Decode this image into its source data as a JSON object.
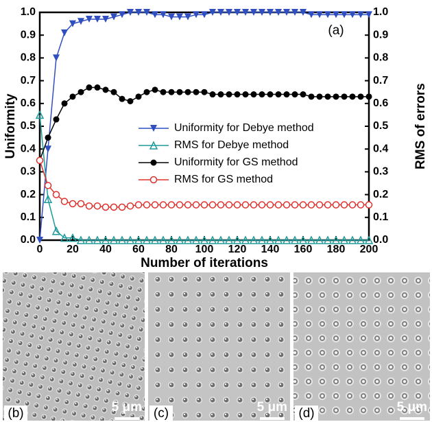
{
  "chart_data": {
    "type": "line",
    "annotation": "(a)",
    "x_label": "Number of iterations",
    "y_label": "Uniformity",
    "y2_label": "RMS of errors",
    "x": [
      0,
      5,
      10,
      15,
      20,
      25,
      30,
      35,
      40,
      45,
      50,
      55,
      60,
      65,
      70,
      75,
      80,
      85,
      90,
      95,
      100,
      105,
      110,
      115,
      120,
      125,
      130,
      135,
      140,
      145,
      150,
      155,
      160,
      165,
      170,
      175,
      180,
      185,
      190,
      195,
      200
    ],
    "xlim": [
      0,
      200
    ],
    "xticks": [
      0,
      20,
      40,
      60,
      80,
      100,
      120,
      140,
      160,
      180,
      200
    ],
    "ylim": [
      0,
      1
    ],
    "yticks": [
      {
        "value": 0,
        "label": "0.0"
      },
      0.1,
      0.2,
      0.3,
      0.4,
      0.5,
      0.6,
      0.7,
      0.8,
      0.9,
      {
        "value": 1,
        "label": "1.0"
      }
    ],
    "y2lim": [
      0,
      1
    ],
    "y2ticks": [
      {
        "value": 0,
        "label": "0.0"
      },
      0.1,
      0.2,
      0.3,
      0.4,
      0.5,
      0.6,
      0.7,
      0.8,
      0.9,
      {
        "value": 1,
        "label": "1.0"
      }
    ],
    "grid": false,
    "series": [
      {
        "name": "Uniformity for Debye method",
        "color": "#2f4fc0",
        "marker": "triangle-down",
        "values": [
          0.0,
          0.4,
          0.8,
          0.91,
          0.95,
          0.96,
          0.97,
          0.97,
          0.97,
          0.98,
          0.99,
          1.0,
          1.0,
          1.0,
          0.99,
          0.99,
          0.98,
          0.98,
          0.98,
          0.99,
          0.99,
          1.0,
          1.0,
          1.0,
          1.0,
          1.0,
          1.0,
          1.0,
          1.0,
          1.0,
          1.0,
          1.0,
          1.0,
          0.99,
          0.99,
          0.99,
          0.99,
          0.99,
          0.99,
          0.99,
          0.99
        ]
      },
      {
        "name": "RMS for Debye method",
        "color": "#1f9a9a",
        "marker": "triangle-up",
        "axis": "y2",
        "values": [
          0.55,
          0.18,
          0.04,
          0.01,
          0.01,
          0.0,
          0.0,
          0.0,
          0.0,
          0.0,
          0.0,
          0.0,
          0.0,
          0.0,
          0.0,
          0.0,
          0.0,
          0.0,
          0.0,
          0.0,
          0.0,
          0.0,
          0.0,
          0.0,
          0.0,
          0.0,
          0.0,
          0.0,
          0.0,
          0.0,
          0.0,
          0.0,
          0.0,
          0.0,
          0.0,
          0.0,
          0.0,
          0.0,
          0.0,
          0.0,
          0.0
        ]
      },
      {
        "name": "Uniformity for GS method",
        "color": "#000000",
        "marker": "circle",
        "values": [
          0.35,
          0.45,
          0.53,
          0.6,
          0.63,
          0.65,
          0.67,
          0.67,
          0.66,
          0.65,
          0.62,
          0.61,
          0.63,
          0.65,
          0.66,
          0.65,
          0.65,
          0.65,
          0.65,
          0.65,
          0.65,
          0.64,
          0.64,
          0.64,
          0.64,
          0.64,
          0.64,
          0.64,
          0.64,
          0.64,
          0.64,
          0.64,
          0.64,
          0.63,
          0.63,
          0.63,
          0.63,
          0.63,
          0.63,
          0.63,
          0.63
        ]
      },
      {
        "name": "RMS for GS method",
        "color": "#e0302a",
        "marker": "open-circle",
        "axis": "y2",
        "values": [
          0.35,
          0.24,
          0.2,
          0.17,
          0.16,
          0.16,
          0.15,
          0.15,
          0.145,
          0.145,
          0.145,
          0.15,
          0.155,
          0.155,
          0.155,
          0.155,
          0.155,
          0.155,
          0.155,
          0.155,
          0.155,
          0.155,
          0.155,
          0.155,
          0.155,
          0.155,
          0.155,
          0.155,
          0.155,
          0.155,
          0.155,
          0.155,
          0.155,
          0.155,
          0.155,
          0.155,
          0.155,
          0.155,
          0.155,
          0.155,
          0.155
        ]
      }
    ]
  },
  "panels": [
    {
      "label": "(b)",
      "scale": "5 μm"
    },
    {
      "label": "(c)",
      "scale": "5 μm"
    },
    {
      "label": "(d)",
      "scale": "5 μm"
    }
  ]
}
